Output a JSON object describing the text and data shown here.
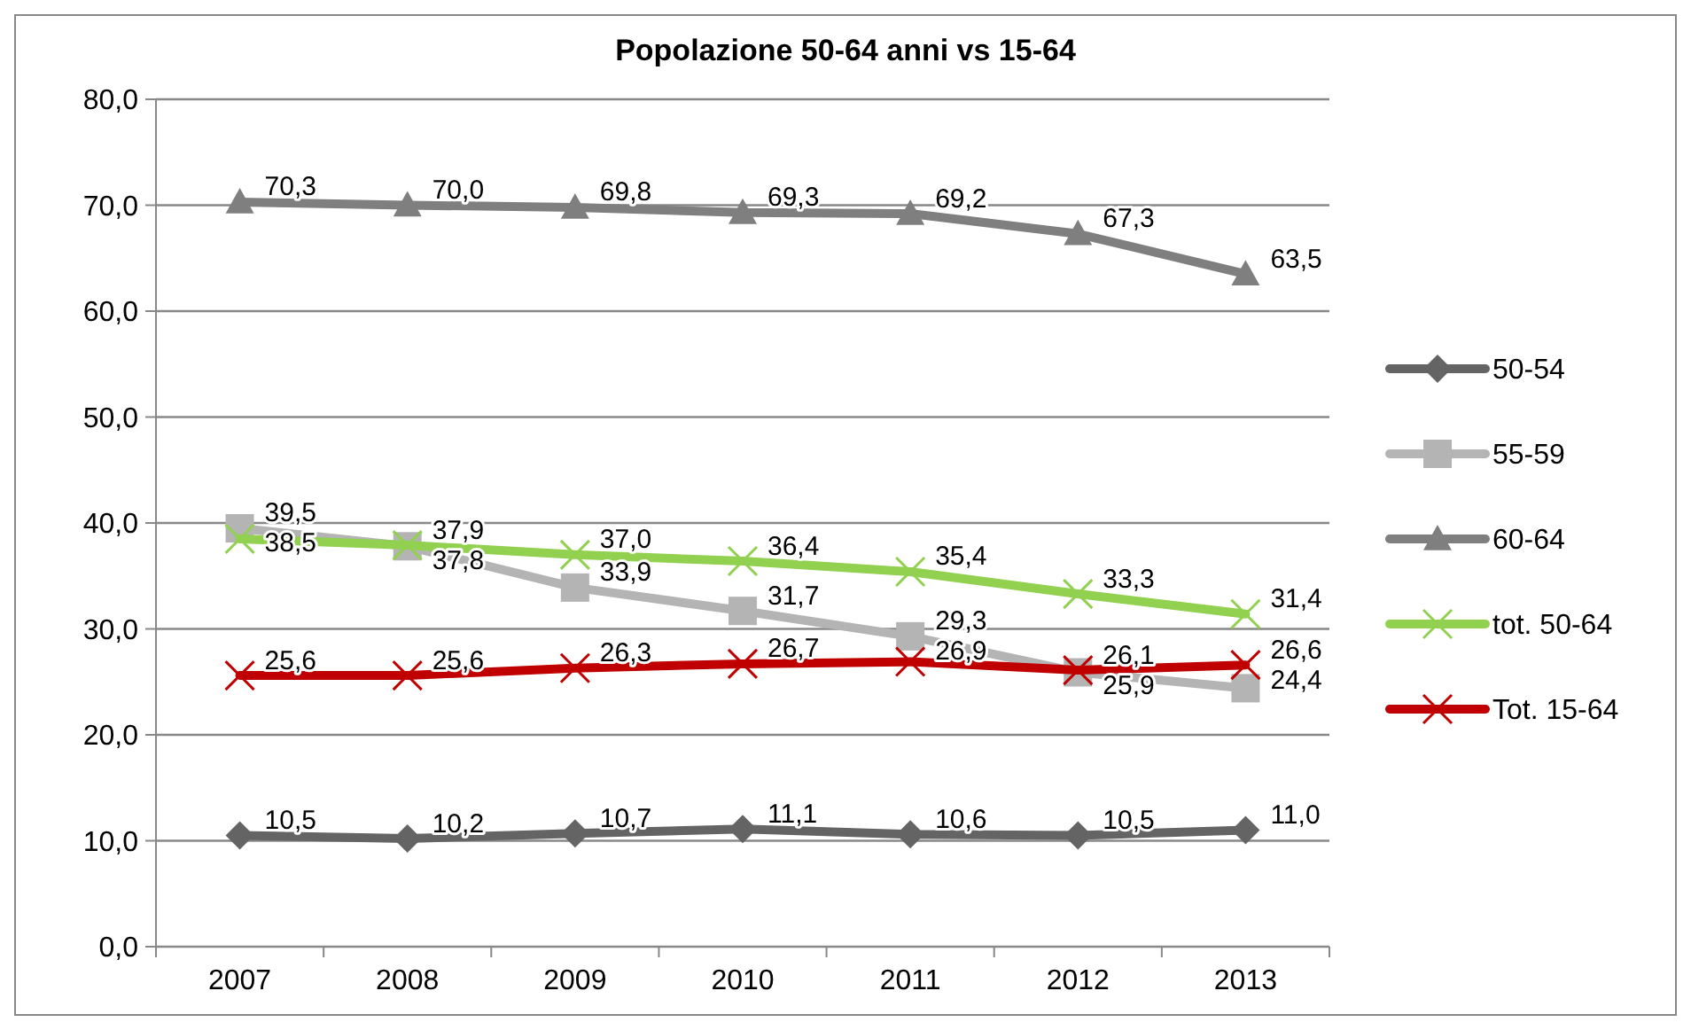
{
  "chart_data": {
    "type": "line",
    "title": "Popolazione 50-64 anni vs 15-64",
    "categories": [
      "2007",
      "2008",
      "2009",
      "2010",
      "2011",
      "2012",
      "2013"
    ],
    "series": [
      {
        "name": "50-54",
        "color": "#646464",
        "marker": "diamond",
        "values": [
          10.5,
          10.2,
          10.7,
          11.1,
          10.6,
          10.5,
          11.0
        ],
        "value_labels": [
          "10,5",
          "10,2",
          "10,7",
          "11,1",
          "10,6",
          "10,5",
          "11,0"
        ]
      },
      {
        "name": "55-59",
        "color": "#b4b4b4",
        "marker": "square",
        "values": [
          39.5,
          37.8,
          33.9,
          31.7,
          29.3,
          25.9,
          24.4
        ],
        "value_labels": [
          "39,5",
          "37,8",
          "33,9",
          "31,7",
          "29,3",
          "25,9",
          "24,4"
        ]
      },
      {
        "name": "60-64",
        "color": "#7f7f7f",
        "marker": "triangle",
        "values": [
          70.3,
          70.0,
          69.8,
          69.3,
          69.2,
          67.3,
          63.5
        ],
        "value_labels": [
          "70,3",
          "70,0",
          "69,8",
          "69,3",
          "69,2",
          "67,3",
          "63,5"
        ]
      },
      {
        "name": "tot. 50-64",
        "color": "#92d050",
        "marker": "cross",
        "values": [
          38.5,
          37.9,
          37.0,
          36.4,
          35.4,
          33.3,
          31.4
        ],
        "value_labels": [
          "38,5",
          "37,9",
          "37,0",
          "36,4",
          "35,4",
          "33,3",
          "31,4"
        ]
      },
      {
        "name": "Tot. 15-64",
        "color": "#c00000",
        "marker": "cross",
        "values": [
          25.6,
          25.6,
          26.3,
          26.7,
          26.9,
          26.1,
          26.6
        ],
        "value_labels": [
          "25,6",
          "25,6",
          "26,3",
          "26,7",
          "26,9",
          "26,1",
          "26,6"
        ]
      }
    ],
    "ylim": [
      0,
      80
    ],
    "yticks": [
      {
        "value": 0,
        "label": "0,0"
      },
      {
        "value": 10,
        "label": "10,0"
      },
      {
        "value": 20,
        "label": "20,0"
      },
      {
        "value": 30,
        "label": "30,0"
      },
      {
        "value": 40,
        "label": "40,0"
      },
      {
        "value": 50,
        "label": "50,0"
      },
      {
        "value": 60,
        "label": "60,0"
      },
      {
        "value": 70,
        "label": "70,0"
      },
      {
        "value": 80,
        "label": "80,0"
      }
    ],
    "grid": "y",
    "legend": "right"
  }
}
